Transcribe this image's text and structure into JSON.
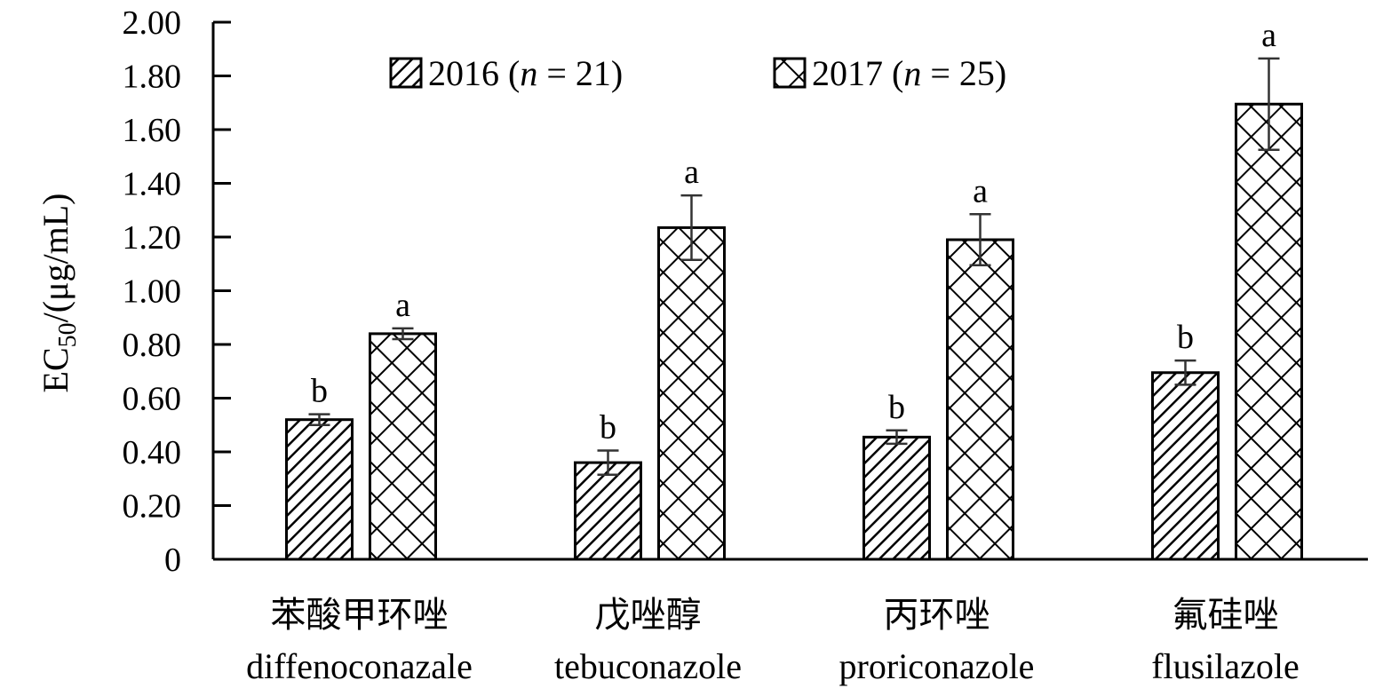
{
  "chart_data": {
    "type": "bar",
    "ylabel": {
      "main": "EC",
      "sub": "50",
      "unit": "/(μg/mL)"
    },
    "ylim": [
      0,
      2.0
    ],
    "yticks": [
      "0",
      "0.20",
      "0.40",
      "0.60",
      "0.80",
      "1.00",
      "1.20",
      "1.40",
      "1.60",
      "1.80",
      "2.00"
    ],
    "ytick_values": [
      0,
      0.2,
      0.4,
      0.6,
      0.8,
      1.0,
      1.2,
      1.4,
      1.6,
      1.8,
      2.0
    ],
    "categories": [
      {
        "cn": "苯酸甲环唑",
        "en": "diffenoconazale"
      },
      {
        "cn": "戊唑醇",
        "en": "tebuconazole"
      },
      {
        "cn": "丙环唑",
        "en": "proriconazole"
      },
      {
        "cn": "氟硅唑",
        "en": "flusilazole"
      }
    ],
    "series": [
      {
        "name": "2016",
        "n_label": "n",
        "n_value": "= 21)",
        "pattern": "diagonal-hatch",
        "values": [
          0.52,
          0.36,
          0.455,
          0.695
        ],
        "errors": [
          0.02,
          0.045,
          0.025,
          0.045
        ],
        "letters": [
          "b",
          "b",
          "b",
          "b"
        ]
      },
      {
        "name": "2017",
        "n_label": "n",
        "n_value": "= 25)",
        "pattern": "crosshatch",
        "values": [
          0.84,
          1.235,
          1.19,
          1.695
        ],
        "errors": [
          0.02,
          0.12,
          0.095,
          0.17
        ],
        "letters": [
          "a",
          "a",
          "a",
          "a"
        ]
      }
    ],
    "legend_position": "top",
    "grid": false,
    "colors": {
      "stroke": "#000000",
      "fill": "#ffffff"
    }
  }
}
